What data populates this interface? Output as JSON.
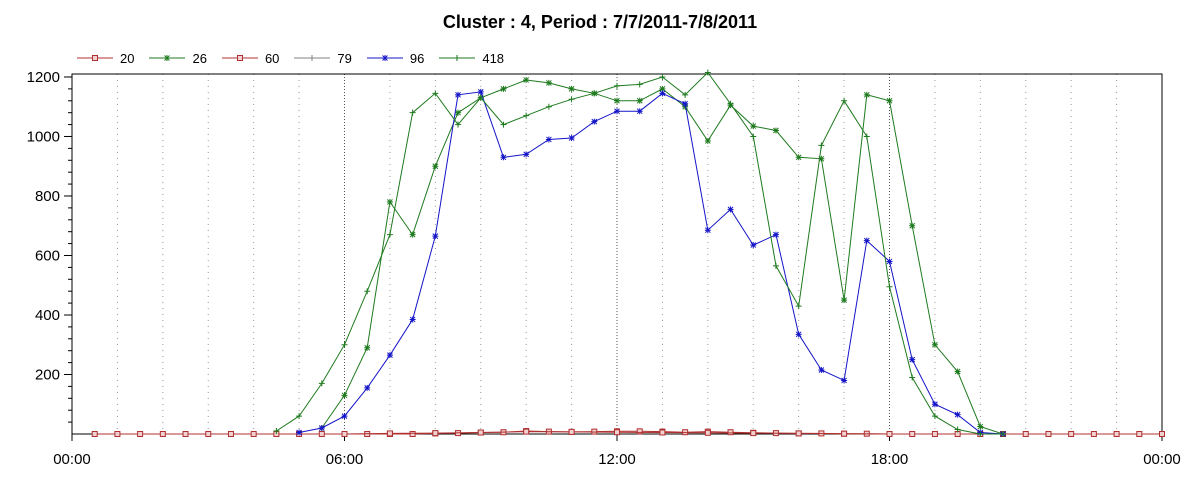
{
  "chart_data": {
    "type": "line",
    "title": "Cluster : 4, Period : 7/7/2011-7/8/2011",
    "xlabel": "",
    "ylabel": "",
    "x_unit": "hours",
    "xlim": [
      0,
      24
    ],
    "ylim": [
      0,
      1210
    ],
    "x_tick_labels": [
      "00:00",
      "06:00",
      "12:00",
      "18:00",
      "00:00"
    ],
    "x_ticks": [
      0,
      6,
      12,
      18,
      24
    ],
    "y_ticks": [
      200,
      400,
      600,
      800,
      1000,
      1200
    ],
    "y_tick_labels": [
      "200",
      "400",
      "600",
      "800",
      "1000",
      "1200"
    ],
    "grid": "dotted vertical lines at each hour",
    "legend_position": "top-left",
    "series": [
      {
        "name": "20",
        "color": "#b03030",
        "marker": "square",
        "x": [
          0.5,
          1,
          1.5,
          2,
          2.5,
          3,
          3.5,
          4,
          4.5,
          5,
          5.5,
          6,
          6.5,
          7,
          7.5,
          8,
          8.5,
          9,
          9.5,
          10,
          10.5,
          11,
          11.5,
          12,
          12.5,
          13,
          13.5,
          14,
          14.5,
          15,
          15.5,
          16,
          16.5,
          17,
          17.5,
          18,
          18.5,
          19,
          19.5,
          20,
          20.5,
          21,
          21.5,
          22,
          22.5,
          23,
          23.5,
          24
        ],
        "values": [
          0,
          0,
          0,
          0,
          0,
          0,
          0,
          0,
          0,
          0,
          0,
          0,
          0,
          0,
          0,
          2,
          3,
          5,
          6,
          10,
          8,
          7,
          8,
          9,
          9,
          8,
          6,
          8,
          6,
          4,
          3,
          2,
          2,
          1,
          1,
          0,
          0,
          0,
          0,
          0,
          0,
          0,
          0,
          0,
          0,
          0,
          0,
          0
        ]
      },
      {
        "name": "26",
        "color": "#1e7a1e",
        "marker": "star",
        "x": [
          5.5,
          6,
          6.5,
          7,
          7.5,
          8,
          8.5,
          9,
          9.5,
          10,
          10.5,
          11,
          11.5,
          12,
          12.5,
          13,
          13.5,
          14,
          14.5,
          15,
          15.5,
          16,
          16.5,
          17,
          17.5,
          18,
          18.5,
          19,
          19.5,
          20,
          20.5
        ],
        "values": [
          20,
          130,
          290,
          780,
          670,
          900,
          1080,
          1130,
          1160,
          1190,
          1180,
          1160,
          1145,
          1120,
          1120,
          1160,
          1100,
          985,
          1105,
          1035,
          1020,
          930,
          925,
          450,
          1140,
          1120,
          700,
          300,
          210,
          25,
          0
        ]
      },
      {
        "name": "60",
        "color": "#b03030",
        "marker": "square",
        "x": [
          6,
          7,
          8,
          9,
          10,
          11,
          12,
          13,
          14,
          15,
          16,
          17,
          18
        ],
        "values": [
          0,
          2,
          3,
          5,
          8,
          7,
          6,
          5,
          4,
          3,
          2,
          1,
          0
        ]
      },
      {
        "name": "79",
        "color": "#808080",
        "marker": "tick",
        "x": [],
        "values": []
      },
      {
        "name": "96",
        "color": "#1414c8",
        "marker": "star",
        "x": [
          5,
          5.5,
          6,
          6.5,
          7,
          7.5,
          8,
          8.5,
          9,
          9.5,
          10,
          10.5,
          11,
          11.5,
          12,
          12.5,
          13,
          13.5,
          14,
          14.5,
          15,
          15.5,
          16,
          16.5,
          17,
          17.5,
          18,
          18.5,
          19,
          19.5,
          20,
          20.5
        ],
        "values": [
          5,
          20,
          60,
          155,
          265,
          385,
          665,
          1140,
          1150,
          930,
          940,
          990,
          995,
          1050,
          1085,
          1085,
          1145,
          1110,
          685,
          755,
          635,
          670,
          335,
          215,
          180,
          650,
          580,
          250,
          100,
          65,
          5,
          0
        ]
      },
      {
        "name": "418",
        "color": "#1e7a1e",
        "marker": "tick",
        "x": [
          4.5,
          5,
          5.5,
          6,
          6.5,
          7,
          7.5,
          8,
          8.5,
          9,
          9.5,
          10,
          10.5,
          11,
          11.5,
          12,
          12.5,
          13,
          13.5,
          14,
          14.5,
          15,
          15.5,
          16,
          16.5,
          17,
          17.5,
          18,
          18.5,
          19,
          19.5,
          20,
          20.5
        ],
        "values": [
          10,
          60,
          170,
          300,
          480,
          670,
          1080,
          1145,
          1040,
          1130,
          1040,
          1070,
          1100,
          1125,
          1145,
          1170,
          1175,
          1200,
          1140,
          1215,
          1110,
          1000,
          565,
          430,
          970,
          1120,
          1000,
          495,
          190,
          60,
          15,
          0,
          0
        ]
      }
    ]
  }
}
